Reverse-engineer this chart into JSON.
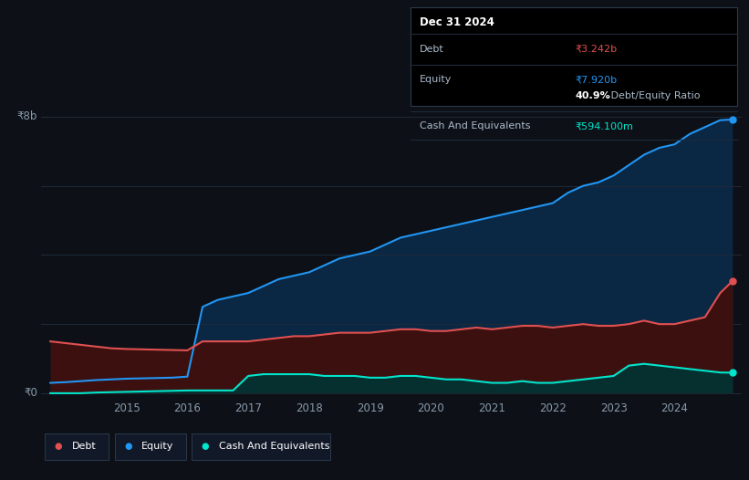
{
  "background_color": "#0d1117",
  "plot_bg_color": "#0d1117",
  "ylabel_8b": "₹8b",
  "ylabel_0": "₹0",
  "x_ticks": [
    2015,
    2016,
    2017,
    2018,
    2019,
    2020,
    2021,
    2022,
    2023,
    2024
  ],
  "grid_color": "#1e2a3a",
  "equity_color": "#2196f3",
  "equity_fill": "#0a2744",
  "debt_color": "#e05050",
  "debt_fill": "#3d1010",
  "cash_color": "#00e5cc",
  "cash_fill": "#063030",
  "legend_bg": "#111827",
  "legend_border": "#2a3a4a",
  "tooltip_title": "Dec 31 2024",
  "tooltip_debt_label": "Debt",
  "tooltip_debt_value": "₹3.242b",
  "tooltip_equity_label": "Equity",
  "tooltip_equity_value": "₹7.920b",
  "tooltip_ratio_bold": "40.9%",
  "tooltip_ratio_rest": " Debt/Equity Ratio",
  "tooltip_cash_label": "Cash And Equivalents",
  "tooltip_cash_value": "₹594.100m",
  "years": [
    2013.75,
    2014.0,
    2014.25,
    2014.5,
    2014.75,
    2015.0,
    2015.25,
    2015.5,
    2015.75,
    2016.0,
    2016.25,
    2016.5,
    2016.75,
    2017.0,
    2017.25,
    2017.5,
    2017.75,
    2018.0,
    2018.25,
    2018.5,
    2018.75,
    2019.0,
    2019.25,
    2019.5,
    2019.75,
    2020.0,
    2020.25,
    2020.5,
    2020.75,
    2021.0,
    2021.25,
    2021.5,
    2021.75,
    2022.0,
    2022.25,
    2022.5,
    2022.75,
    2023.0,
    2023.25,
    2023.5,
    2023.75,
    2024.0,
    2024.25,
    2024.5,
    2024.75,
    2024.95
  ],
  "equity": [
    0.3,
    0.32,
    0.35,
    0.38,
    0.4,
    0.42,
    0.43,
    0.44,
    0.45,
    0.48,
    2.5,
    2.7,
    2.8,
    2.9,
    3.1,
    3.3,
    3.4,
    3.5,
    3.7,
    3.9,
    4.0,
    4.1,
    4.3,
    4.5,
    4.6,
    4.7,
    4.8,
    4.9,
    5.0,
    5.1,
    5.2,
    5.3,
    5.4,
    5.5,
    5.8,
    6.0,
    6.1,
    6.3,
    6.6,
    6.9,
    7.1,
    7.2,
    7.5,
    7.7,
    7.9,
    7.92
  ],
  "debt": [
    1.5,
    1.45,
    1.4,
    1.35,
    1.3,
    1.28,
    1.27,
    1.26,
    1.25,
    1.24,
    1.5,
    1.5,
    1.5,
    1.5,
    1.55,
    1.6,
    1.65,
    1.65,
    1.7,
    1.75,
    1.75,
    1.75,
    1.8,
    1.85,
    1.85,
    1.8,
    1.8,
    1.85,
    1.9,
    1.85,
    1.9,
    1.95,
    1.95,
    1.9,
    1.95,
    2.0,
    1.95,
    1.95,
    2.0,
    2.1,
    2.0,
    2.0,
    2.1,
    2.2,
    2.9,
    3.242
  ],
  "cash": [
    0.0,
    0.0,
    0.0,
    0.02,
    0.03,
    0.04,
    0.05,
    0.06,
    0.07,
    0.08,
    0.08,
    0.08,
    0.08,
    0.5,
    0.55,
    0.55,
    0.55,
    0.55,
    0.5,
    0.5,
    0.5,
    0.45,
    0.45,
    0.5,
    0.5,
    0.45,
    0.4,
    0.4,
    0.35,
    0.3,
    0.3,
    0.35,
    0.3,
    0.3,
    0.35,
    0.4,
    0.45,
    0.5,
    0.8,
    0.85,
    0.8,
    0.75,
    0.7,
    0.65,
    0.6,
    0.594
  ]
}
